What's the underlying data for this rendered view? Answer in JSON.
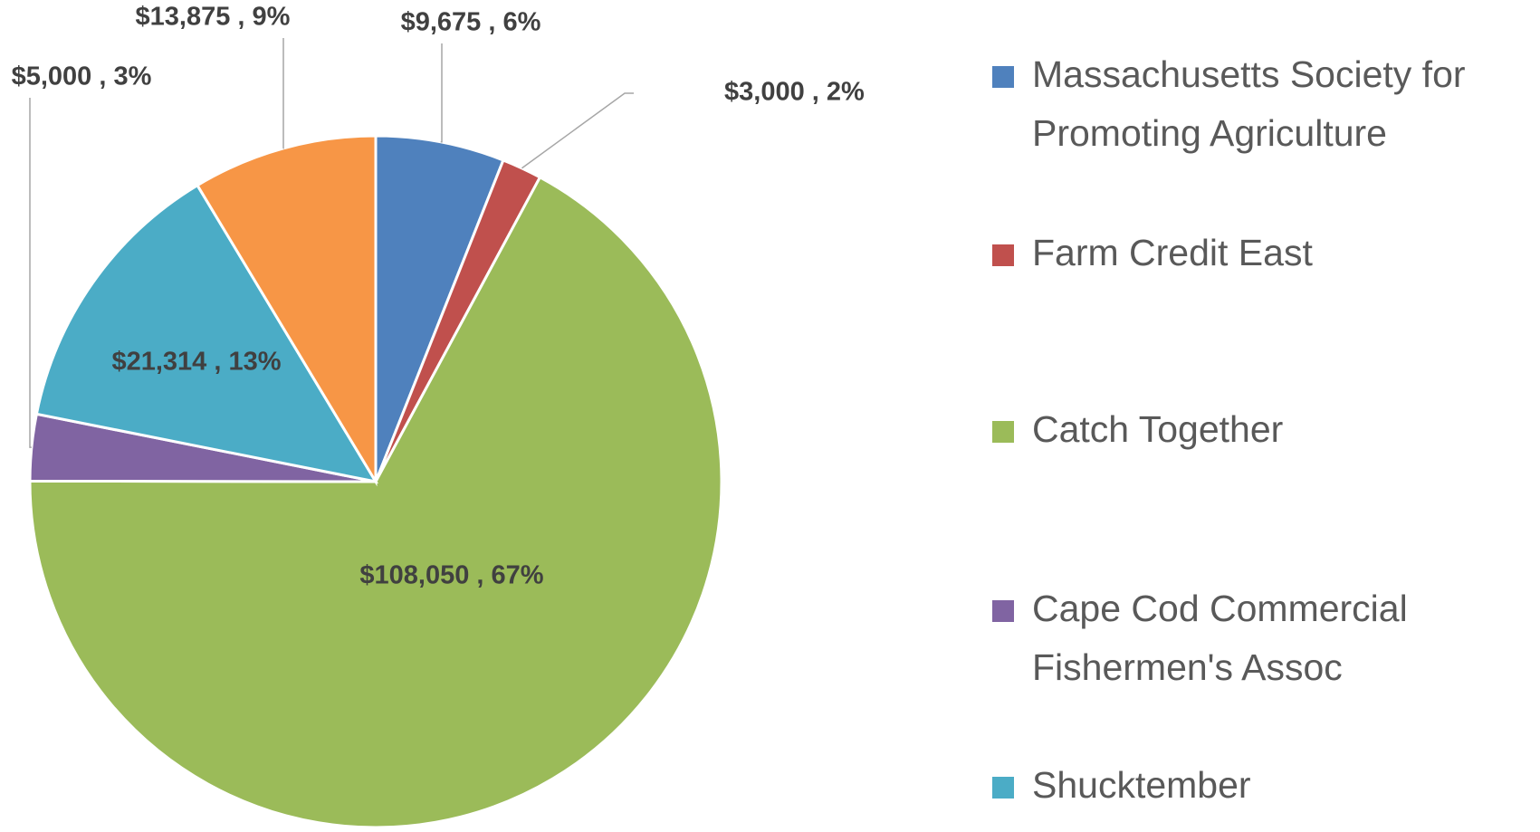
{
  "chart_data": {
    "type": "pie",
    "categories": [
      "Massachusetts Society for Promoting Agriculture",
      "Farm Credit East",
      "Catch Together",
      "Cape Cod Commercial Fishermen's Assoc",
      "Shucktember",
      null
    ],
    "values": [
      9675,
      3000,
      108050,
      5000,
      21314,
      13875
    ],
    "value_labels": [
      "$9,675 , 6%",
      "$3,000 , 2%",
      "$108,050 , 67%",
      "$5,000 , 3%",
      "$21,314 , 13%",
      "$13,875 , 9%"
    ],
    "colors": [
      "#4f81bd",
      "#c0504d",
      "#9bbb59",
      "#8064a2",
      "#4bacc6",
      "#f79646"
    ],
    "legend": "right"
  }
}
